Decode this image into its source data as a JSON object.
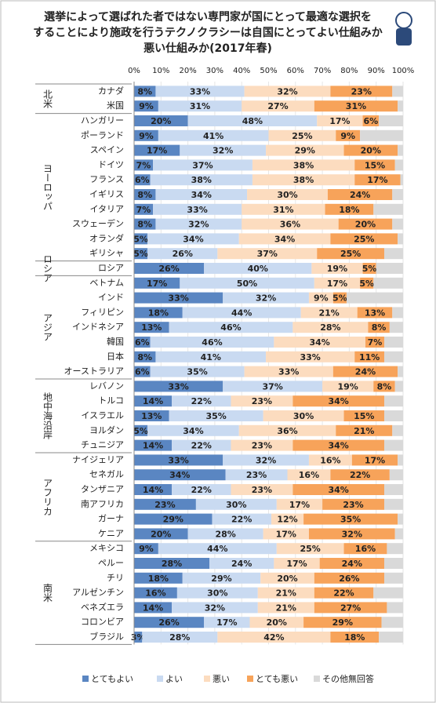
{
  "chart_data": {
    "type": "stacked-bar-horizontal",
    "title": [
      "選挙によって選ばれた者ではない専門家が国にとって最適な選択を",
      "することにより施政を行うテクノクラシーは自国にとってよい仕組みか",
      "悪い仕組みか(2017年春)"
    ],
    "groups": [
      {
        "name": "北米",
        "categories": [
          "カナダ",
          "米国"
        ]
      },
      {
        "name": "ヨーロッパ",
        "categories": [
          "ハンガリー",
          "ポーランド",
          "スペイン",
          "ドイツ",
          "フランス",
          "イギリス",
          "イタリア",
          "スウェーデン",
          "オランダ",
          "ギリシャ"
        ]
      },
      {
        "name": "ロシア",
        "categories": [
          "ロシア"
        ]
      },
      {
        "name": "アジア",
        "categories": [
          "ベトナム",
          "インド",
          "フィリピン",
          "インドネシア",
          "韓国",
          "日本",
          "オーストラリア"
        ]
      },
      {
        "name": "地中海沿岸",
        "categories": [
          "レバノン",
          "トルコ",
          "イスラエル",
          "ヨルダン",
          "チュニジア"
        ]
      },
      {
        "name": "アフリカ",
        "categories": [
          "ナイジェリア",
          "セネガル",
          "タンザニア",
          "南アフリカ",
          "ガーナ",
          "ケニア"
        ]
      },
      {
        "name": "南米",
        "categories": [
          "メキシコ",
          "ペルー",
          "チリ",
          "アルゼンチン",
          "ベネズエラ",
          "コロンビア",
          "ブラジル"
        ]
      }
    ],
    "series": [
      {
        "name": "とてもよい",
        "color": "#5a86c2",
        "values": [
          8,
          9,
          20,
          9,
          17,
          7,
          6,
          8,
          7,
          8,
          5,
          5,
          26,
          17,
          33,
          18,
          13,
          6,
          8,
          6,
          33,
          14,
          13,
          5,
          14,
          33,
          34,
          14,
          23,
          29,
          20,
          9,
          28,
          18,
          16,
          14,
          26,
          3
        ],
        "value_labels": [
          "8%",
          "9%",
          "20%",
          "9%",
          "17%",
          "7%",
          "6%",
          "8%",
          "7%",
          "8%",
          "5%",
          "5%",
          "26%",
          "17%",
          "33%",
          "18%",
          "13%",
          "6%",
          "8%",
          "6%",
          "33%",
          "14%",
          "13%",
          "5%",
          "14%",
          "33%",
          "34%",
          "14%",
          "23%",
          "29%",
          "20%",
          "9%",
          "28%",
          "18%",
          "16%",
          "14%",
          "26%",
          "3%"
        ]
      },
      {
        "name": "よい",
        "color": "#c9daf1",
        "values": [
          33,
          31,
          48,
          41,
          32,
          37,
          38,
          34,
          33,
          32,
          34,
          26,
          40,
          50,
          32,
          44,
          46,
          46,
          41,
          35,
          37,
          22,
          35,
          34,
          22,
          32,
          23,
          22,
          30,
          22,
          28,
          44,
          24,
          29,
          30,
          32,
          17,
          28
        ],
        "value_labels": [
          "33%",
          "31%",
          "48%",
          "41%",
          "32%",
          "37%",
          "38%",
          "34%",
          "33%",
          "32%",
          "34%",
          "26%",
          "40%",
          "50%",
          "32%",
          "44%",
          "46%",
          "46%",
          "41%",
          "35%",
          "37%",
          "22%",
          "35%",
          "34%",
          "22%",
          "32%",
          "23%",
          "22%",
          "30%",
          "22%",
          "28%",
          "44%",
          "24%",
          "29%",
          "30%",
          "32%",
          "17%",
          "28%"
        ]
      },
      {
        "name": "悪い",
        "color": "#fcdcbf",
        "values": [
          32,
          27,
          17,
          25,
          29,
          38,
          38,
          30,
          31,
          36,
          34,
          37,
          19,
          17,
          9,
          21,
          28,
          34,
          33,
          33,
          19,
          23,
          30,
          36,
          23,
          16,
          16,
          23,
          17,
          12,
          17,
          25,
          17,
          20,
          21,
          21,
          20,
          42
        ],
        "value_labels": [
          "32%",
          "27%",
          "17%",
          "25%",
          "29%",
          "38%",
          "38%",
          "30%",
          "31%",
          "36%",
          "34%",
          "37%",
          "19%",
          "17%",
          "9%",
          "21%",
          "28%",
          "34%",
          "33%",
          "33%",
          "19%",
          "23%",
          "30%",
          "36%",
          "23%",
          "16%",
          "16%",
          "23%",
          "17%",
          "12%",
          "17%",
          "25%",
          "17%",
          "20%",
          "21%",
          "21%",
          "20%",
          "42%"
        ]
      },
      {
        "name": "とても悪い",
        "color": "#f7a35a",
        "values": [
          23,
          31,
          6,
          9,
          20,
          15,
          17,
          24,
          18,
          20,
          25,
          25,
          5,
          5,
          5,
          13,
          8,
          7,
          11,
          24,
          8,
          34,
          15,
          21,
          34,
          17,
          22,
          34,
          23,
          35,
          32,
          16,
          24,
          26,
          22,
          27,
          29,
          18
        ],
        "value_labels": [
          "23%",
          "31%",
          "6%",
          "9%",
          "20%",
          "15%",
          "17%",
          "24%",
          "18%",
          "20%",
          "25%",
          "25%",
          "5%",
          "5%",
          "5%",
          "13%",
          "8%",
          "7%",
          "11%",
          "24%",
          "8%",
          "34%",
          "15%",
          "21%",
          "34%",
          "17%",
          "22%",
          "34%",
          "23%",
          "35%",
          "32%",
          "16%",
          "24%",
          "26%",
          "22%",
          "27%",
          "29%",
          "18%"
        ]
      },
      {
        "name": "その他無回答",
        "color": "#d9d9d9",
        "values": [
          4,
          2,
          9,
          16,
          2,
          3,
          1,
          4,
          11,
          4,
          2,
          7,
          10,
          11,
          21,
          4,
          5,
          7,
          7,
          2,
          3,
          7,
          7,
          4,
          7,
          2,
          5,
          7,
          7,
          2,
          3,
          6,
          7,
          7,
          11,
          6,
          8,
          9
        ]
      }
    ],
    "xlim": [
      0,
      100
    ],
    "xticks": [
      {
        "value": 0,
        "label": "0%"
      },
      {
        "value": 10,
        "label": "10%"
      },
      {
        "value": 20,
        "label": "20%"
      },
      {
        "value": 30,
        "label": "30%"
      },
      {
        "value": 40,
        "label": "40%"
      },
      {
        "value": 50,
        "label": "50%"
      },
      {
        "value": 60,
        "label": "60%"
      },
      {
        "value": 70,
        "label": "70%"
      },
      {
        "value": 80,
        "label": "80%"
      },
      {
        "value": 90,
        "label": "90%"
      },
      {
        "value": 100,
        "label": "100%"
      }
    ]
  }
}
